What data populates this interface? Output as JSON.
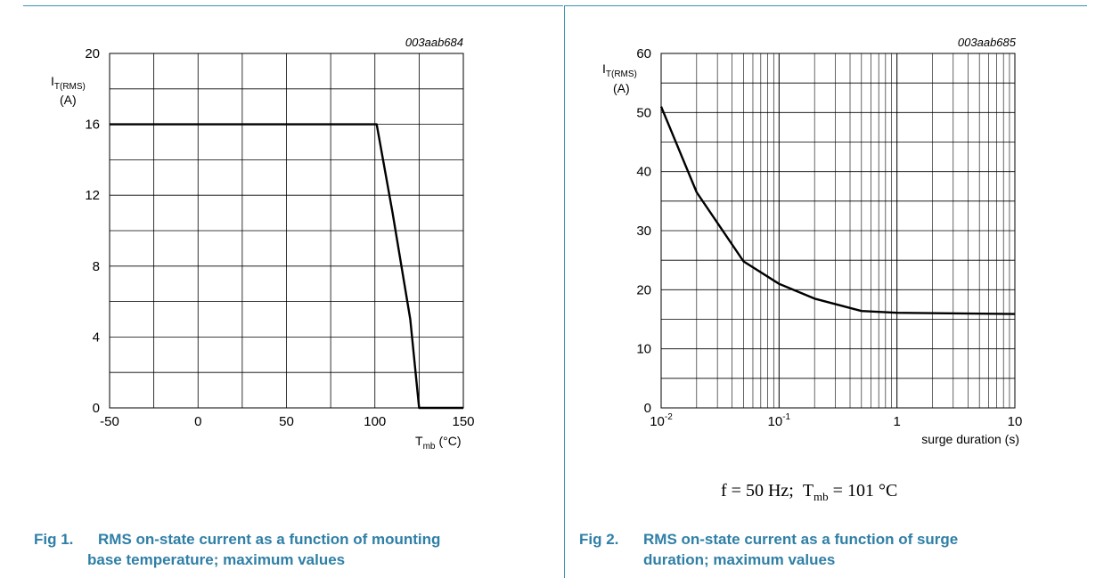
{
  "chart_data": [
    {
      "type": "line",
      "id_code": "003aab684",
      "ylabel_main": "I",
      "ylabel_sub": "T(RMS)",
      "yunit": "(A)",
      "xlabel_main": "T",
      "xlabel_sub": "mb",
      "xunit": "(°C)",
      "xlim": [
        -50,
        150
      ],
      "ylim": [
        0,
        20
      ],
      "x_ticks": [
        -50,
        0,
        50,
        100,
        150
      ],
      "x_tick_labels": [
        "-50",
        "0",
        "50",
        "100",
        "150"
      ],
      "y_ticks": [
        0,
        4,
        8,
        12,
        16,
        20
      ],
      "y_tick_labels": [
        "0",
        "4",
        "8",
        "12",
        "16",
        "20"
      ],
      "grid": true,
      "series": [
        {
          "x": [
            -50,
            101,
            110,
            120,
            125,
            150
          ],
          "y": [
            16,
            16,
            11,
            5,
            0,
            0
          ]
        }
      ]
    },
    {
      "type": "line",
      "id_code": "003aab685",
      "ylabel_main": "I",
      "ylabel_sub": "T(RMS)",
      "yunit": "(A)",
      "xlabel": "surge duration (s)",
      "xscale": "log",
      "xlim": [
        0.01,
        10
      ],
      "ylim": [
        0,
        60
      ],
      "x_ticks": [
        0.01,
        0.1,
        1,
        10
      ],
      "x_tick_labels": [
        {
          "base": "10",
          "exp": "-2"
        },
        {
          "base": "10",
          "exp": "-1"
        },
        {
          "base": "1",
          "exp": ""
        },
        {
          "base": "10",
          "exp": ""
        }
      ],
      "y_ticks": [
        0,
        10,
        20,
        30,
        40,
        50,
        60
      ],
      "y_tick_labels": [
        "0",
        "10",
        "20",
        "30",
        "40",
        "50",
        "60"
      ],
      "grid": true,
      "series": [
        {
          "x": [
            0.01,
            0.02,
            0.05,
            0.1,
            0.2,
            0.5,
            1,
            10
          ],
          "y": [
            51,
            36.5,
            24.8,
            21,
            18.5,
            16.4,
            16.1,
            15.9
          ]
        }
      ]
    }
  ],
  "figures": [
    {
      "number": "Fig 1.",
      "caption_lines": [
        "RMS on-state current as a function of mounting",
        "base temperature; maximum values"
      ]
    },
    {
      "number": "Fig 2.",
      "caption_lines": [
        "RMS on-state current as a function of surge",
        "duration; maximum values"
      ]
    }
  ],
  "condition": {
    "f_part": "f = 50 Hz;",
    "t_main": "T",
    "t_sub": "mb",
    "t_value": "= 101 °C"
  },
  "colors": {
    "accent": "#2f7fa6",
    "rule": "#3a93b4"
  }
}
